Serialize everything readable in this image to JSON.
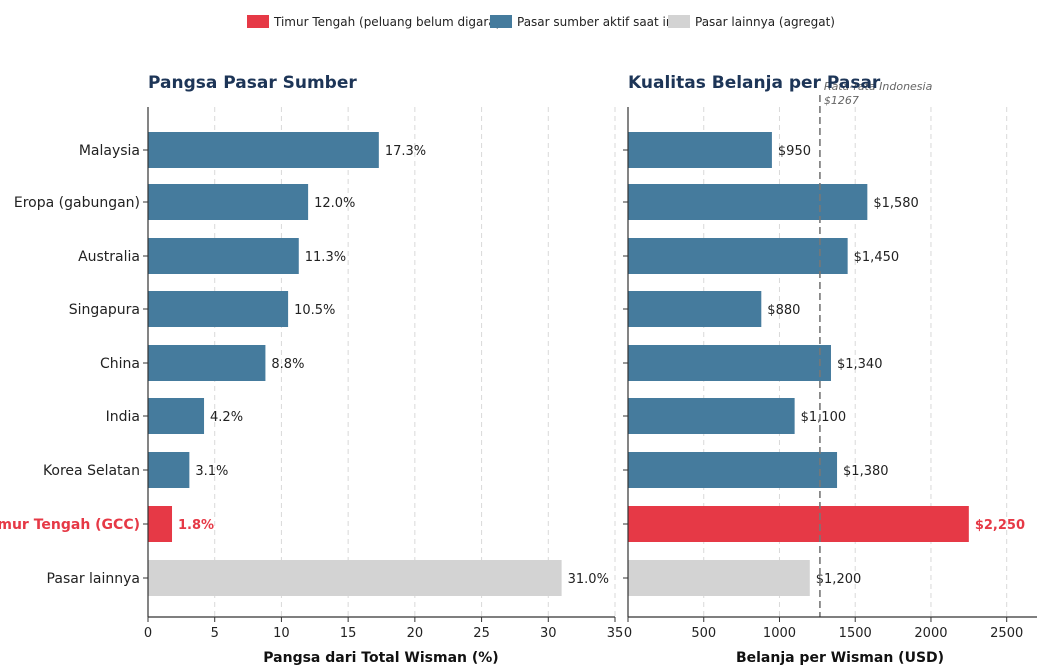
{
  "legend": [
    {
      "label": "Timur Tengah (peluang belum digarap)",
      "color": "#e63946"
    },
    {
      "label": "Pasar sumber aktif saat ini",
      "color": "#457b9d"
    },
    {
      "label": "Pasar lainnya (agregat)",
      "color": "#d3d3d3"
    }
  ],
  "chart_data": [
    {
      "type": "bar",
      "orientation": "horizontal",
      "title": "Pangsa Pasar Sumber",
      "xlabel": "Pangsa dari Total Wisman (%)",
      "ylabel": "",
      "categories": [
        "Malaysia",
        "Eropa (gabungan)",
        "Australia",
        "Singapura",
        "China",
        "India",
        "Korea Selatan",
        "Timur Tengah (GCC)",
        "Pasar lainnya"
      ],
      "values": [
        17.3,
        12.0,
        11.3,
        10.5,
        8.8,
        4.2,
        3.1,
        1.8,
        31.0
      ],
      "value_labels": [
        "17.3%",
        "12.0%",
        "11.3%",
        "10.5%",
        "8.8%",
        "4.2%",
        "3.1%",
        "1.8%",
        "31.0%"
      ],
      "groups": [
        "active",
        "active",
        "active",
        "active",
        "active",
        "active",
        "active",
        "highlight",
        "other"
      ],
      "xlim": [
        0,
        35
      ],
      "xticks": [
        0,
        5,
        10,
        15,
        20,
        25,
        30,
        35
      ],
      "grid": "vertical dashed"
    },
    {
      "type": "bar",
      "orientation": "horizontal",
      "title": "Kualitas Belanja per Pasar",
      "xlabel": "Belanja per Wisman (USD)",
      "ylabel": "",
      "categories": [
        "Malaysia",
        "Eropa (gabungan)",
        "Australia",
        "Singapura",
        "China",
        "India",
        "Korea Selatan",
        "Timur Tengah (GCC)",
        "Pasar lainnya"
      ],
      "values": [
        950,
        1580,
        1450,
        880,
        1340,
        1100,
        1380,
        2250,
        1200
      ],
      "value_labels": [
        "$950",
        "$1,580",
        "$1,450",
        "$880",
        "$1,340",
        "$1,100",
        "$1,380",
        "$2,250",
        "$1,200"
      ],
      "groups": [
        "active",
        "active",
        "active",
        "active",
        "active",
        "active",
        "active",
        "highlight",
        "other"
      ],
      "xlim": [
        0,
        2700
      ],
      "xticks": [
        0,
        500,
        1000,
        1500,
        2000,
        2500
      ],
      "grid": "vertical dashed",
      "reference_line": {
        "value": 1267,
        "label_line1": "Rata-rata Indonesia",
        "label_line2": "$1267"
      }
    }
  ],
  "colors": {
    "active": "#457b9d",
    "highlight": "#e63946",
    "other": "#d3d3d3"
  }
}
